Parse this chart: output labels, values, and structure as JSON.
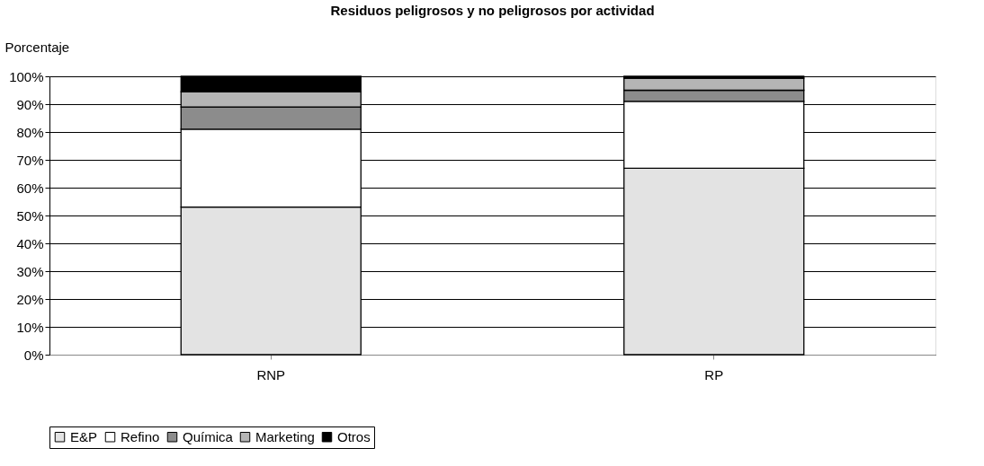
{
  "chart_data": {
    "type": "bar",
    "title": "Residuos peligrosos y no peligrosos por actividad",
    "ylabel": "Porcentaje",
    "categories": [
      "RNP",
      "RP"
    ],
    "stacked": true,
    "series": [
      {
        "name": "E&P",
        "color": "#e3e3e3",
        "values": [
          53,
          67
        ]
      },
      {
        "name": "Refino",
        "color": "#ffffff",
        "values": [
          28,
          24
        ]
      },
      {
        "name": "Química",
        "color": "#8c8c8c",
        "values": [
          8,
          4
        ]
      },
      {
        "name": "Marketing",
        "color": "#b5b5b5",
        "values": [
          5.5,
          4.3
        ]
      },
      {
        "name": "Otros",
        "color": "#000000",
        "values": [
          5.5,
          0.7
        ]
      }
    ],
    "ylim": [
      0,
      100
    ],
    "yticks": [
      {
        "value": 0,
        "label": "0%"
      },
      {
        "value": 10,
        "label": "10%"
      },
      {
        "value": 20,
        "label": "20%"
      },
      {
        "value": 30,
        "label": "30%"
      },
      {
        "value": 40,
        "label": "40%"
      },
      {
        "value": 50,
        "label": "50%"
      },
      {
        "value": 60,
        "label": "60%"
      },
      {
        "value": 70,
        "label": "70%"
      },
      {
        "value": 80,
        "label": "80%"
      },
      {
        "value": 90,
        "label": "90%"
      },
      {
        "value": 100,
        "label": "100%"
      }
    ],
    "grid": "y",
    "legend": "bottom"
  }
}
